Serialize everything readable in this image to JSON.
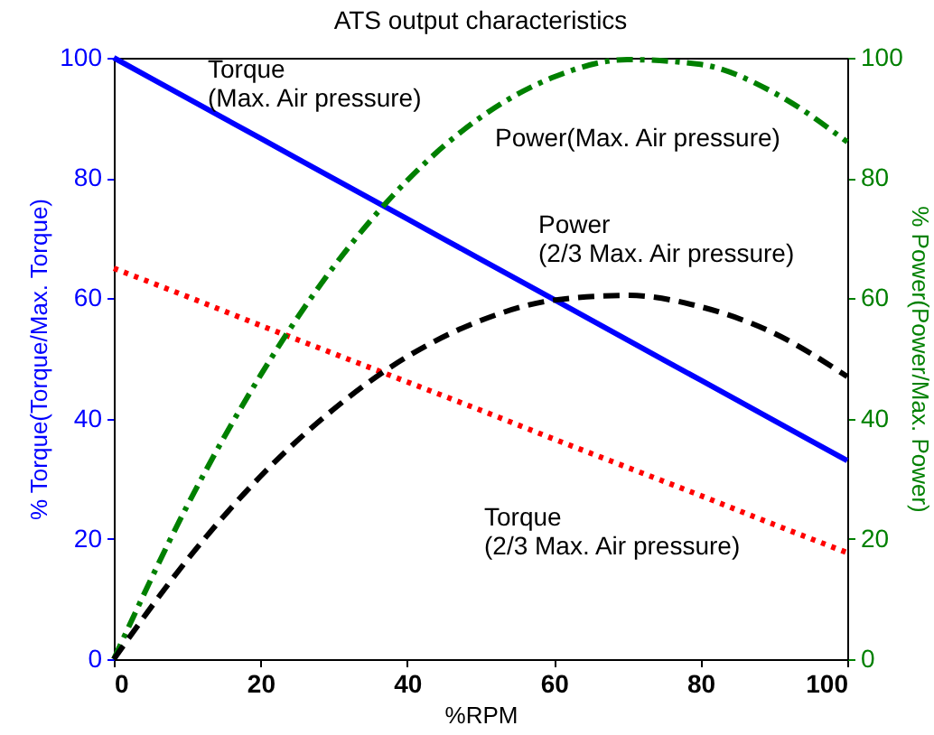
{
  "chart_data": {
    "type": "line",
    "title": "ATS output characteristics",
    "xlabel": "%RPM",
    "ylabel": "% Torque(Torque/Max. Torque)",
    "y2label": "% Power(Power/Max. Power)",
    "x": [
      0,
      10,
      20,
      30,
      40,
      50,
      60,
      70,
      80,
      90,
      100
    ],
    "xlim": [
      0,
      100
    ],
    "xticks": [
      0,
      20,
      40,
      60,
      80,
      100
    ],
    "ylim": [
      0,
      100
    ],
    "yticks": [
      0,
      20,
      40,
      60,
      80,
      100
    ],
    "y2lim": [
      0,
      100
    ],
    "y2ticks": [
      0,
      20,
      40,
      60,
      80,
      100
    ],
    "series": [
      {
        "color": "#0000ff",
        "line_style": "solid",
        "values": [
          100,
          93.3,
          86.6,
          79.9,
          73.2,
          66.5,
          59.8,
          53.1,
          46.4,
          39.7,
          33
        ]
      },
      {
        "color": "#ff0000",
        "line_style": "dotted",
        "values": [
          65,
          60.3,
          55.5,
          50.8,
          46.1,
          41.4,
          36.6,
          31.9,
          27.2,
          22.4,
          17.7
        ]
      },
      {
        "color": "#008000",
        "line_style": "dashdot",
        "axis": "y2",
        "values": [
          0,
          25.5,
          47.2,
          65.3,
          79.6,
          90.1,
          96.8,
          99.7,
          98.9,
          94.2,
          86
        ]
      },
      {
        "color": "#000000",
        "line_style": "dashed",
        "axis": "y2",
        "values": [
          0,
          16.5,
          30.4,
          41.6,
          50.3,
          56.3,
          59.7,
          60.5,
          58.6,
          54.2,
          47
        ]
      }
    ],
    "annotations": [
      "Torque\n(Max. Air pressure)",
      "Power(Max. Air pressure)",
      "Power\n(2/3 Max. Air pressure)",
      "Torque\n(2/3 Max. Air pressure)"
    ]
  }
}
